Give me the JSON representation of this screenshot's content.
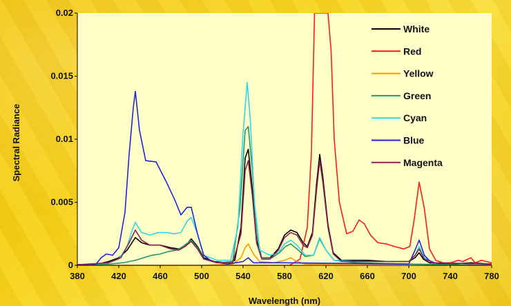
{
  "chart_data": {
    "type": "line",
    "title": "",
    "xlabel": "Wavelength (nm)",
    "ylabel": "Spectral Radiance",
    "xlim": [
      380,
      780
    ],
    "ylim": [
      0,
      0.02
    ],
    "x_ticks": [
      380,
      420,
      460,
      500,
      540,
      580,
      620,
      660,
      700,
      740,
      780
    ],
    "y_ticks": [
      0,
      0.005,
      0.01,
      0.015,
      0.02
    ],
    "y_tick_labels": [
      "0",
      "0.005",
      "0.01",
      "0.015",
      "0.02"
    ],
    "grid": false,
    "legend_position": "top-right",
    "plot_background": "#ffffc8",
    "series": [
      {
        "name": "White",
        "color": "#000000",
        "points": [
          [
            380,
            5e-05
          ],
          [
            400,
            0.0001
          ],
          [
            410,
            0.0003
          ],
          [
            420,
            0.0006
          ],
          [
            428,
            0.0012
          ],
          [
            436,
            0.0022
          ],
          [
            442,
            0.0018
          ],
          [
            450,
            0.0016
          ],
          [
            460,
            0.0016
          ],
          [
            470,
            0.0014
          ],
          [
            478,
            0.0013
          ],
          [
            484,
            0.0015
          ],
          [
            490,
            0.0021
          ],
          [
            496,
            0.0015
          ],
          [
            502,
            0.0006
          ],
          [
            512,
            0.0003
          ],
          [
            525,
            0.0002
          ],
          [
            532,
            0.0004
          ],
          [
            538,
            0.003
          ],
          [
            542,
            0.0085
          ],
          [
            545,
            0.0092
          ],
          [
            549,
            0.006
          ],
          [
            553,
            0.002
          ],
          [
            558,
            0.0006
          ],
          [
            566,
            0.0006
          ],
          [
            574,
            0.0013
          ],
          [
            580,
            0.0024
          ],
          [
            586,
            0.0028
          ],
          [
            592,
            0.0026
          ],
          [
            598,
            0.0018
          ],
          [
            602,
            0.0015
          ],
          [
            607,
            0.0026
          ],
          [
            611,
            0.0065
          ],
          [
            614,
            0.0088
          ],
          [
            617,
            0.007
          ],
          [
            622,
            0.0032
          ],
          [
            627,
            0.001
          ],
          [
            635,
            0.0004
          ],
          [
            650,
            0.0004
          ],
          [
            660,
            0.0004
          ],
          [
            680,
            0.0003
          ],
          [
            700,
            0.0003
          ],
          [
            706,
            0.0006
          ],
          [
            710,
            0.001
          ],
          [
            714,
            0.0005
          ],
          [
            720,
            0.0002
          ],
          [
            740,
            0.0001
          ],
          [
            760,
            0.0002
          ],
          [
            780,
            0.0001
          ]
        ]
      },
      {
        "name": "Red",
        "color": "#ff1a1a",
        "points": [
          [
            380,
            0
          ],
          [
            450,
            0
          ],
          [
            520,
            0
          ],
          [
            560,
            0
          ],
          [
            585,
            0
          ],
          [
            595,
            0.0005
          ],
          [
            602,
            0.003
          ],
          [
            606,
            0.009
          ],
          [
            609,
            0.02
          ],
          [
            613,
            0.02
          ],
          [
            618,
            0.02
          ],
          [
            622,
            0.02
          ],
          [
            625,
            0.017
          ],
          [
            628,
            0.01
          ],
          [
            633,
            0.005
          ],
          [
            640,
            0.0025
          ],
          [
            646,
            0.0027
          ],
          [
            652,
            0.0036
          ],
          [
            657,
            0.0033
          ],
          [
            663,
            0.0024
          ],
          [
            670,
            0.0018
          ],
          [
            678,
            0.0017
          ],
          [
            686,
            0.0015
          ],
          [
            695,
            0.0013
          ],
          [
            701,
            0.0015
          ],
          [
            705,
            0.0035
          ],
          [
            710,
            0.0066
          ],
          [
            715,
            0.0045
          ],
          [
            720,
            0.0013
          ],
          [
            726,
            0.0004
          ],
          [
            733,
            0.0002
          ],
          [
            740,
            0.0002
          ],
          [
            748,
            0.0004
          ],
          [
            752,
            0.0003
          ],
          [
            760,
            0.0006
          ],
          [
            764,
            0.0002
          ],
          [
            770,
            0.0004
          ],
          [
            780,
            0.0002
          ]
        ]
      },
      {
        "name": "Yellow",
        "color": "#ff9900",
        "points": [
          [
            380,
            0
          ],
          [
            500,
            0
          ],
          [
            530,
            0.0001
          ],
          [
            538,
            0.0006
          ],
          [
            542,
            0.0014
          ],
          [
            545,
            0.0017
          ],
          [
            550,
            0.0009
          ],
          [
            556,
            0.0003
          ],
          [
            570,
            0.0002
          ],
          [
            580,
            0.0004
          ],
          [
            586,
            0.0006
          ],
          [
            592,
            0.0003
          ],
          [
            600,
            0.0001
          ],
          [
            700,
            0.0001
          ],
          [
            780,
            0
          ]
        ]
      },
      {
        "name": "Green",
        "color": "#229966",
        "points": [
          [
            380,
            0
          ],
          [
            410,
            0.0001
          ],
          [
            424,
            0.0002
          ],
          [
            430,
            0.0003
          ],
          [
            436,
            0.0004
          ],
          [
            444,
            0.0006
          ],
          [
            452,
            0.0008
          ],
          [
            460,
            0.0009
          ],
          [
            468,
            0.0011
          ],
          [
            476,
            0.0012
          ],
          [
            482,
            0.0015
          ],
          [
            490,
            0.002
          ],
          [
            496,
            0.0014
          ],
          [
            502,
            0.0005
          ],
          [
            515,
            0.0002
          ],
          [
            530,
            0.0003
          ],
          [
            537,
            0.0045
          ],
          [
            542,
            0.0107
          ],
          [
            545,
            0.011
          ],
          [
            549,
            0.0075
          ],
          [
            553,
            0.0025
          ],
          [
            558,
            0.0006
          ],
          [
            568,
            0.0006
          ],
          [
            575,
            0.001
          ],
          [
            581,
            0.0015
          ],
          [
            586,
            0.0017
          ],
          [
            592,
            0.0013
          ],
          [
            600,
            0.0007
          ],
          [
            608,
            0.0008
          ],
          [
            614,
            0.0021
          ],
          [
            620,
            0.0012
          ],
          [
            628,
            0.0004
          ],
          [
            650,
            0.0002
          ],
          [
            700,
            0.0001
          ],
          [
            780,
            0
          ]
        ]
      },
      {
        "name": "Cyan",
        "color": "#33d6e6",
        "points": [
          [
            380,
            0
          ],
          [
            410,
            0.0002
          ],
          [
            420,
            0.0005
          ],
          [
            428,
            0.0015
          ],
          [
            433,
            0.0028
          ],
          [
            436,
            0.0034
          ],
          [
            442,
            0.0026
          ],
          [
            450,
            0.0024
          ],
          [
            458,
            0.0026
          ],
          [
            466,
            0.0026
          ],
          [
            474,
            0.0025
          ],
          [
            480,
            0.0026
          ],
          [
            486,
            0.0035
          ],
          [
            490,
            0.0038
          ],
          [
            496,
            0.0025
          ],
          [
            502,
            0.0008
          ],
          [
            515,
            0.0004
          ],
          [
            528,
            0.0004
          ],
          [
            535,
            0.003
          ],
          [
            540,
            0.0105
          ],
          [
            544,
            0.0145
          ],
          [
            547,
            0.0115
          ],
          [
            551,
            0.005
          ],
          [
            556,
            0.0012
          ],
          [
            566,
            0.0008
          ],
          [
            574,
            0.001
          ],
          [
            580,
            0.0017
          ],
          [
            586,
            0.002
          ],
          [
            592,
            0.0016
          ],
          [
            600,
            0.0008
          ],
          [
            608,
            0.0008
          ],
          [
            614,
            0.0022
          ],
          [
            620,
            0.0012
          ],
          [
            628,
            0.0004
          ],
          [
            650,
            0.0003
          ],
          [
            700,
            0.0003
          ],
          [
            706,
            0.0008
          ],
          [
            710,
            0.0015
          ],
          [
            715,
            0.0006
          ],
          [
            725,
            0.0002
          ],
          [
            780,
            0.0001
          ]
        ]
      },
      {
        "name": "Blue",
        "color": "#2222dd",
        "points": [
          [
            380,
            5e-05
          ],
          [
            398,
            0.0001
          ],
          [
            403,
            0.0006
          ],
          [
            408,
            0.0009
          ],
          [
            414,
            0.0008
          ],
          [
            420,
            0.0014
          ],
          [
            426,
            0.0042
          ],
          [
            430,
            0.0088
          ],
          [
            434,
            0.0125
          ],
          [
            436,
            0.0138
          ],
          [
            440,
            0.0107
          ],
          [
            446,
            0.0083
          ],
          [
            456,
            0.0082
          ],
          [
            466,
            0.0066
          ],
          [
            474,
            0.0052
          ],
          [
            480,
            0.004
          ],
          [
            486,
            0.0046
          ],
          [
            490,
            0.0046
          ],
          [
            496,
            0.0025
          ],
          [
            502,
            0.0008
          ],
          [
            510,
            0.0003
          ],
          [
            525,
            0.0001
          ],
          [
            540,
            0.0003
          ],
          [
            545,
            0.0006
          ],
          [
            550,
            0.0002
          ],
          [
            580,
            0.0002
          ],
          [
            700,
            0.0001
          ],
          [
            706,
            0.0012
          ],
          [
            710,
            0.002
          ],
          [
            715,
            0.0008
          ],
          [
            722,
            0.0002
          ],
          [
            780,
            0.0001
          ]
        ]
      },
      {
        "name": "Magenta",
        "color": "#8b2252",
        "points": [
          [
            380,
            5e-05
          ],
          [
            410,
            0.0002
          ],
          [
            422,
            0.0006
          ],
          [
            430,
            0.0018
          ],
          [
            436,
            0.0028
          ],
          [
            442,
            0.002
          ],
          [
            450,
            0.0016
          ],
          [
            460,
            0.0016
          ],
          [
            470,
            0.0013
          ],
          [
            478,
            0.0012
          ],
          [
            484,
            0.0015
          ],
          [
            490,
            0.0019
          ],
          [
            496,
            0.0013
          ],
          [
            502,
            0.0005
          ],
          [
            515,
            0.0002
          ],
          [
            530,
            0.0002
          ],
          [
            538,
            0.0025
          ],
          [
            542,
            0.0075
          ],
          [
            545,
            0.0083
          ],
          [
            549,
            0.0055
          ],
          [
            553,
            0.0018
          ],
          [
            558,
            0.0005
          ],
          [
            566,
            0.0005
          ],
          [
            574,
            0.0012
          ],
          [
            580,
            0.0022
          ],
          [
            586,
            0.0026
          ],
          [
            592,
            0.0024
          ],
          [
            598,
            0.0016
          ],
          [
            602,
            0.0014
          ],
          [
            607,
            0.0024
          ],
          [
            611,
            0.006
          ],
          [
            614,
            0.0083
          ],
          [
            617,
            0.0066
          ],
          [
            622,
            0.003
          ],
          [
            627,
            0.0009
          ],
          [
            635,
            0.0003
          ],
          [
            660,
            0.0003
          ],
          [
            700,
            0.0003
          ],
          [
            706,
            0.0008
          ],
          [
            710,
            0.0013
          ],
          [
            715,
            0.0005
          ],
          [
            725,
            0.0002
          ],
          [
            780,
            0.0001
          ]
        ]
      }
    ]
  }
}
